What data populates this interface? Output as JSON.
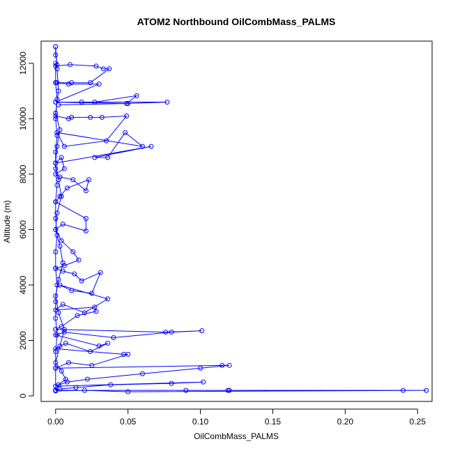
{
  "chart_data": {
    "type": "line",
    "title": "ATOM2 Northbound OilCombMass_PALMS",
    "xlabel": "OilCombMass_PALMS",
    "ylabel": "Altitude (m)",
    "xlim": [
      -0.01,
      0.26
    ],
    "ylim": [
      -200,
      12800
    ],
    "x_ticks": [
      0.0,
      0.05,
      0.1,
      0.15,
      0.2,
      0.25
    ],
    "x_tick_labels": [
      "0.00",
      "0.05",
      "0.10",
      "0.15",
      "0.20",
      "0.25"
    ],
    "y_ticks": [
      0,
      2000,
      4000,
      6000,
      8000,
      10000,
      12000
    ],
    "y_tick_labels": [
      "0",
      "2000",
      "4000",
      "6000",
      "8000",
      "10000",
      "12000"
    ],
    "grid": false,
    "legend": "none",
    "marker": "open-circle",
    "color": "#0000ff",
    "series": [
      {
        "x": [
          0.0,
          0.0,
          0.001,
          0.0,
          0.01,
          0.028,
          0.033,
          0.037,
          0.024,
          0.011,
          0.001
        ],
        "y": [
          12600,
          12300,
          11950,
          11900,
          11950,
          11900,
          11800,
          11800,
          11300,
          11300,
          11300
        ]
      },
      {
        "x": [
          0.0,
          0.009,
          0.03,
          0.0,
          0.018,
          0.027,
          0.056,
          0.049,
          0.0,
          0.077,
          0.05,
          0.002
        ],
        "y": [
          11300,
          11250,
          11250,
          10600,
          10600,
          10600,
          10830,
          10550,
          10600,
          10600,
          10550,
          10500
        ]
      },
      {
        "x": [
          0.0,
          0.009,
          0.011,
          0.024,
          0.032,
          0.049,
          0.035,
          0.006,
          0.001,
          0.06,
          0.048,
          0.036,
          0.027,
          0.066,
          0.0
        ],
        "y": [
          10100,
          10000,
          10050,
          10050,
          10050,
          10100,
          9200,
          9000,
          9500,
          9000,
          9500,
          8600,
          8600,
          9000,
          8400
        ]
      },
      {
        "x": [
          0.0,
          0.004,
          0.006,
          0.0,
          0.003,
          0.012,
          0.021,
          0.023,
          0.008,
          0.003,
          0.0,
          0.021,
          0.021,
          0.005,
          0.0,
          0.004,
          0.012,
          0.016,
          0.006,
          0.0
        ],
        "y": [
          8400,
          8600,
          8200,
          8000,
          7900,
          7800,
          7400,
          7800,
          7500,
          7200,
          7000,
          6400,
          5950,
          6200,
          6000,
          5600,
          5200,
          4900,
          4700,
          4600
        ]
      },
      {
        "x": [
          0.0,
          0.005,
          0.013,
          0.018,
          0.031,
          0.025,
          0.011,
          0.003,
          0.036,
          0.02,
          0.005,
          0.0,
          0.027,
          0.028,
          0.015,
          0.004,
          0.0
        ],
        "y": [
          4600,
          4500,
          4400,
          4150,
          4450,
          3700,
          3800,
          4000,
          3500,
          3000,
          3300,
          3100,
          3200,
          3050,
          2900,
          2500,
          2400
        ]
      },
      {
        "x": [
          0.0,
          0.076,
          0.101,
          0.08,
          0.04,
          0.006,
          0.0,
          0.03,
          0.036,
          0.024,
          0.007,
          0.0,
          0.047,
          0.05,
          0.025,
          0.009,
          0.0
        ],
        "y": [
          2400,
          2300,
          2350,
          2300,
          2100,
          2300,
          2200,
          1800,
          1900,
          1600,
          1900,
          1700,
          1500,
          1500,
          1100,
          1200,
          1000
        ]
      },
      {
        "x": [
          0.0,
          0.115,
          0.12,
          0.1,
          0.06,
          0.022,
          0.008,
          0.0,
          0.102,
          0.08,
          0.038,
          0.014,
          0.003,
          0.0,
          0.119,
          0.12,
          0.09,
          0.24,
          0.256,
          0.05,
          0.02,
          0.0
        ],
        "y": [
          1000,
          1100,
          1100,
          1000,
          800,
          600,
          500,
          350,
          500,
          450,
          400,
          300,
          250,
          200,
          200,
          200,
          200,
          200,
          200,
          150,
          200,
          180
        ]
      },
      {
        "x": [
          0.0,
          0.001,
          0.002,
          0.0,
          0.003,
          0.001,
          0.0,
          0.002,
          0.004,
          0.001,
          0.0,
          0.003,
          0.005,
          0.002,
          0.0,
          0.002,
          0.006,
          0.003,
          0.0,
          0.004,
          0.007,
          0.002,
          0.0
        ],
        "y": [
          12600,
          11800,
          11000,
          10200,
          9600,
          9000,
          8400,
          7800,
          7200,
          6600,
          6000,
          5400,
          4800,
          4200,
          3600,
          3000,
          2400,
          1800,
          1200,
          900,
          600,
          400,
          200
        ]
      },
      {
        "x": [
          0.0,
          0.0,
          0.001,
          0.0,
          0.001,
          0.0,
          0.0,
          0.001,
          0.0,
          0.0,
          0.001,
          0.0,
          0.0,
          0.001,
          0.0,
          0.0,
          0.001,
          0.0,
          0.0,
          0.0
        ],
        "y": [
          12000,
          11300,
          10700,
          10000,
          9400,
          8800,
          8200,
          7600,
          7000,
          6400,
          5800,
          5200,
          4600,
          4000,
          3400,
          2800,
          2200,
          1600,
          1000,
          200
        ]
      }
    ]
  }
}
